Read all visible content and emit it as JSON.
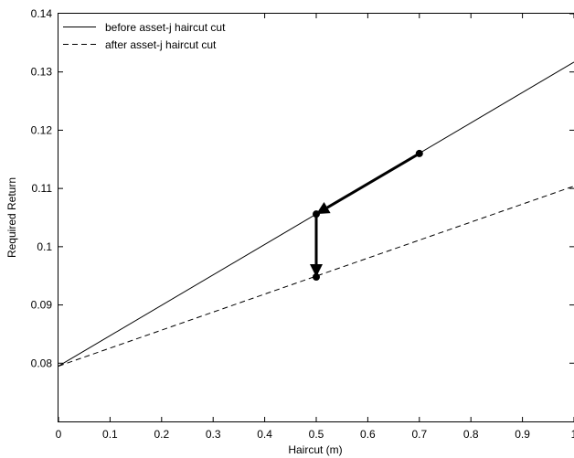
{
  "chart_data": {
    "type": "line",
    "title": "",
    "xlabel": "Haircut (m)",
    "ylabel": "Required Return",
    "xlim": [
      0,
      1
    ],
    "ylim": [
      0.07,
      0.14
    ],
    "xticks": [
      0,
      0.1,
      0.2,
      0.3,
      0.4,
      0.5,
      0.6,
      0.7,
      0.8,
      0.9,
      1
    ],
    "xtick_labels": [
      "0",
      "0.1",
      "0.2",
      "0.3",
      "0.4",
      "0.5",
      "0.6",
      "0.7",
      "0.8",
      "0.9",
      "1"
    ],
    "yticks": [
      0.08,
      0.09,
      0.1,
      0.11,
      0.12,
      0.13,
      0.14
    ],
    "ytick_labels": [
      "0.08",
      "0.09",
      "0.1",
      "0.11",
      "0.12",
      "0.13",
      "0.14"
    ],
    "grid": false,
    "legend_position": "top-left",
    "series": [
      {
        "name": "before asset-j haircut cut",
        "style": "solid",
        "color": "#000000",
        "x": [
          0,
          1
        ],
        "y": [
          0.0795,
          0.1317
        ]
      },
      {
        "name": "after asset-j haircut cut",
        "style": "dashed",
        "color": "#000000",
        "x": [
          0,
          1
        ],
        "y": [
          0.0795,
          0.1104
        ]
      }
    ],
    "points": [
      {
        "x": 0.7,
        "y": 0.116
      },
      {
        "x": 0.5,
        "y": 0.1056
      },
      {
        "x": 0.5,
        "y": 0.0948
      }
    ],
    "arrows": [
      {
        "from": [
          0.7,
          0.116
        ],
        "to": [
          0.5,
          0.1056
        ]
      },
      {
        "from": [
          0.5,
          0.1056
        ],
        "to": [
          0.5,
          0.0948
        ]
      }
    ]
  }
}
